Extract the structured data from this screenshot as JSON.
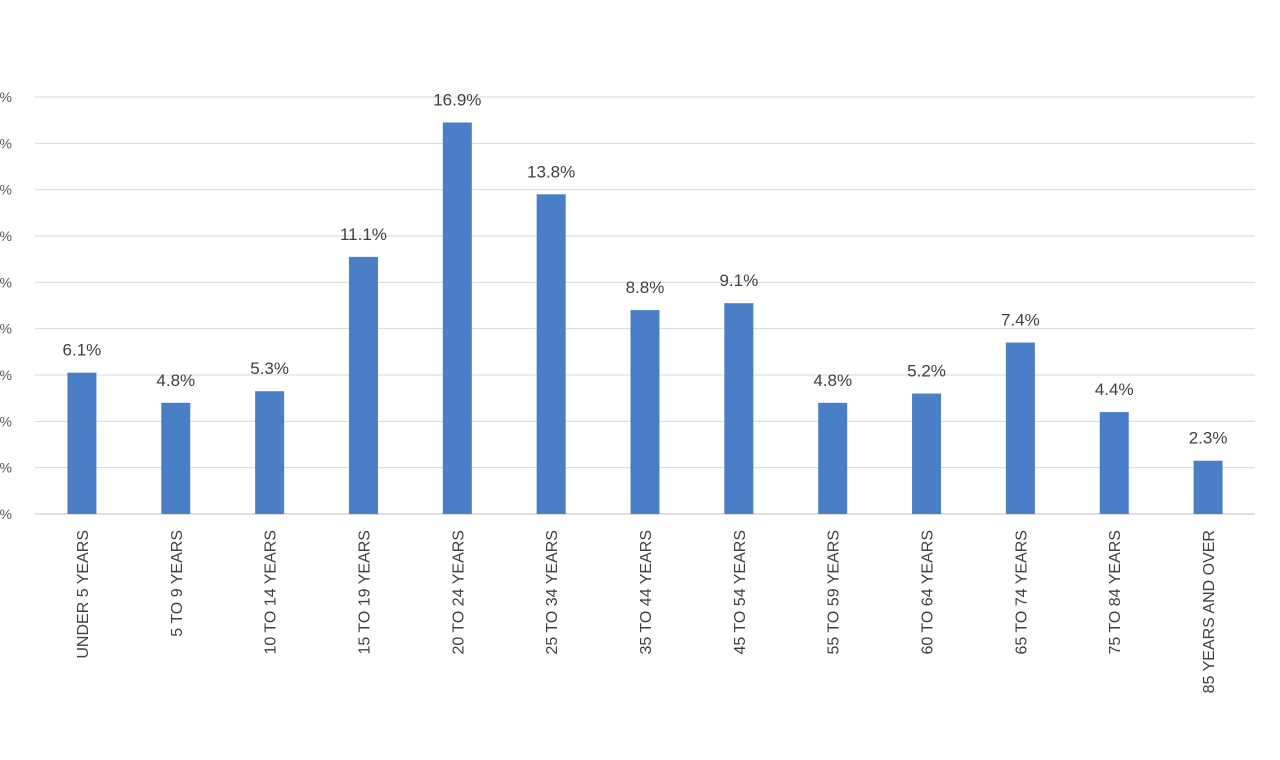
{
  "chart_data": {
    "type": "bar",
    "title": "",
    "xlabel": "",
    "ylabel": "",
    "categories": [
      "UNDER 5 YEARS",
      "5 TO 9 YEARS",
      "10 TO 14 YEARS",
      "15 TO 19 YEARS",
      "20 TO 24 YEARS",
      "25 TO 34 YEARS",
      "35 TO 44 YEARS",
      "45 TO 54 YEARS",
      "55 TO 59 YEARS",
      "60 TO 64 YEARS",
      "65 TO 74 YEARS",
      "75 TO 84 YEARS",
      "85 YEARS AND OVER"
    ],
    "values": [
      6.1,
      4.8,
      5.3,
      11.1,
      16.9,
      13.8,
      8.8,
      9.1,
      4.8,
      5.2,
      7.4,
      4.4,
      2.3
    ],
    "data_labels": [
      "6.1%",
      "4.8%",
      "5.3%",
      "11.1%",
      "16.9%",
      "13.8%",
      "8.8%",
      "9.1%",
      "4.8%",
      "5.2%",
      "7.4%",
      "4.4%",
      "2.3%"
    ],
    "ylim": [
      0,
      18
    ],
    "ytick_step": 2,
    "ytick_labels_visible": [
      "%",
      "%",
      "%",
      "%",
      "%",
      "%",
      "%",
      "%",
      "%",
      "%"
    ],
    "grid": true,
    "legend": "none",
    "bar_color": "#4a7fc8"
  }
}
